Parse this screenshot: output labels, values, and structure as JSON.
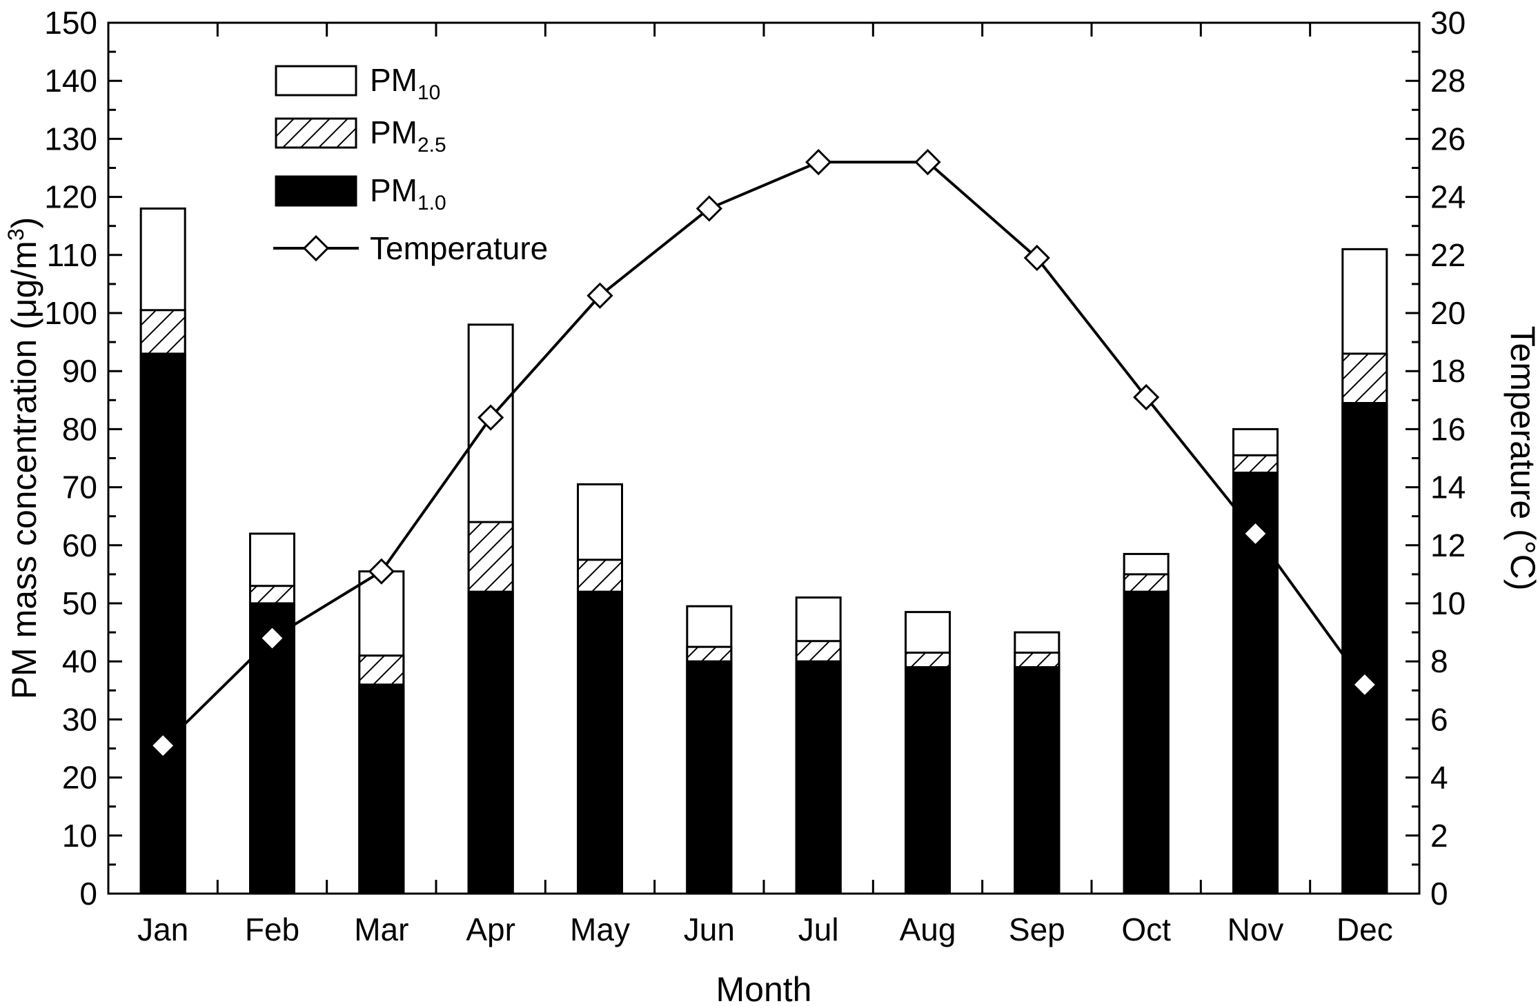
{
  "chart_data": {
    "type": "bar",
    "stacked": true,
    "categories": [
      "Jan",
      "Feb",
      "Mar",
      "Apr",
      "May",
      "Jun",
      "Jul",
      "Aug",
      "Sep",
      "Oct",
      "Nov",
      "Dec"
    ],
    "series": [
      {
        "name": "PM1.0",
        "legend_main": "PM",
        "legend_sub": "1.0",
        "style": "solid-black",
        "values": [
          93,
          50,
          36,
          52,
          52,
          40,
          40,
          39,
          39,
          52,
          72.5,
          84.5
        ]
      },
      {
        "name": "PM2.5",
        "legend_main": "PM",
        "legend_sub": "2.5",
        "style": "hatched",
        "values": [
          100.5,
          53,
          41,
          64,
          57.5,
          42.5,
          43.5,
          41.5,
          41.5,
          55,
          75.5,
          93
        ]
      },
      {
        "name": "PM10",
        "legend_main": "PM",
        "legend_sub": "10",
        "style": "white",
        "values": [
          118,
          62,
          55.5,
          98,
          70.5,
          49.5,
          51,
          48.5,
          45,
          58.5,
          80,
          111
        ]
      }
    ],
    "temperature": {
      "name": "Temperature",
      "axis": "right",
      "values": [
        5.1,
        8.8,
        11.1,
        16.4,
        20.6,
        23.6,
        25.2,
        25.2,
        21.9,
        17.1,
        12.4,
        7.2
      ]
    },
    "xlabel": "Month",
    "ylabel": "PM mass concentration (μg/m³)",
    "ylabel_main": "PM mass concentration (",
    "ylabel_unit": "μg/m",
    "ylabel_sup": "3",
    "ylabel_close": ")",
    "y2label": "Temperature (°C)",
    "y2label_main": "Temperature (",
    "y2label_unit": "°C",
    "y2label_close": ")",
    "ylim": [
      0,
      150
    ],
    "y2lim": [
      0,
      30
    ],
    "yticks": [
      0,
      10,
      20,
      30,
      40,
      50,
      60,
      70,
      80,
      90,
      100,
      110,
      120,
      130,
      140,
      150
    ],
    "y2ticks": [
      0,
      2,
      4,
      6,
      8,
      10,
      12,
      14,
      16,
      18,
      20,
      22,
      24,
      26,
      28,
      30
    ],
    "legend_position": "top-left",
    "grid": false
  },
  "colors": {
    "bar_pm1": "#000000",
    "bar_pm25": "#ffffff",
    "bar_pm10": "#ffffff",
    "line": "#000000",
    "marker_fill": "#ffffff",
    "axis": "#000000"
  }
}
